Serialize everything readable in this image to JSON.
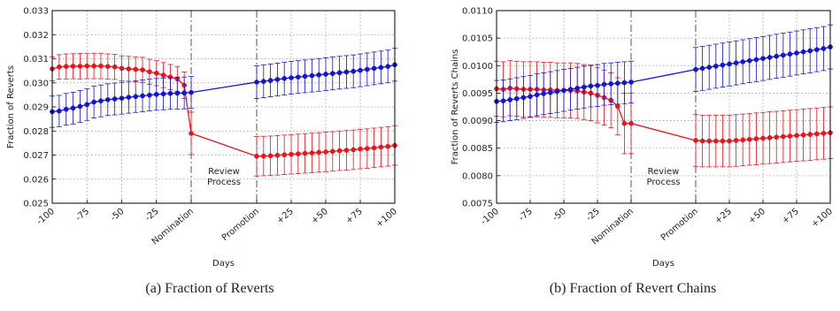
{
  "captions": [
    "(a)  Fraction of Reverts",
    "(b)  Fraction of Revert Chains"
  ],
  "chart_data": [
    {
      "type": "line",
      "ylabel": "Fraction of Reverts",
      "xlabel": "Days",
      "xtick_labels": [
        "-100",
        "-75",
        "-50",
        "-25",
        "Nomination",
        "Promotion",
        "+25",
        "+50",
        "+75",
        "+100"
      ],
      "yticks": [
        "0.025",
        "0.026",
        "0.027",
        "0.028",
        "0.029",
        "0.030",
        "0.031",
        "0.032",
        "0.033"
      ],
      "ylim": [
        0.025,
        0.033
      ],
      "annotation": [
        "Review",
        "Process"
      ],
      "grid": true,
      "segments": {
        "pre_days": [
          -100,
          -95,
          -90,
          -85,
          -80,
          -75,
          -70,
          -65,
          -60,
          -55,
          -50,
          -45,
          -40,
          -35,
          -30,
          -25,
          -20,
          -15,
          -10,
          -5,
          0
        ],
        "post_days": [
          0,
          5,
          10,
          15,
          20,
          25,
          30,
          35,
          40,
          45,
          50,
          55,
          60,
          65,
          70,
          75,
          80,
          85,
          90,
          95,
          100
        ]
      },
      "series": [
        {
          "color": "#e8141e",
          "pre": [
            0.03058,
            0.03066,
            0.03068,
            0.03069,
            0.03069,
            0.0307,
            0.0307,
            0.0307,
            0.03068,
            0.03066,
            0.0306,
            0.03058,
            0.03056,
            0.03054,
            0.03046,
            0.0304,
            0.03032,
            0.03024,
            0.03016,
            0.0299,
            0.0279
          ],
          "pre_err": [
            0.0005,
            0.00051,
            0.00052,
            0.00052,
            0.00053,
            0.00053,
            0.00053,
            0.00053,
            0.00052,
            0.00052,
            0.00052,
            0.00052,
            0.00052,
            0.00052,
            0.00052,
            0.00052,
            0.00052,
            0.00052,
            0.00052,
            0.00055,
            0.00088
          ],
          "post": [
            0.02695,
            0.02696,
            0.02697,
            0.02699,
            0.02701,
            0.02703,
            0.02705,
            0.02707,
            0.02709,
            0.02711,
            0.02713,
            0.02715,
            0.02718,
            0.0272,
            0.02722,
            0.02725,
            0.02727,
            0.0273,
            0.02733,
            0.02736,
            0.0274
          ],
          "post_err": [
            0.00082,
            0.00082,
            0.00082,
            0.00082,
            0.00082,
            0.00082,
            0.00082,
            0.00082,
            0.00082,
            0.00082,
            0.00082,
            0.00082,
            0.00082,
            0.00082,
            0.00082,
            0.00082,
            0.00082,
            0.00082,
            0.00082,
            0.00082,
            0.00082
          ]
        },
        {
          "color": "#1414d2",
          "pre": [
            0.0288,
            0.02883,
            0.0289,
            0.02895,
            0.02902,
            0.0291,
            0.0292,
            0.02925,
            0.0293,
            0.02933,
            0.02936,
            0.0294,
            0.02943,
            0.02946,
            0.02949,
            0.02952,
            0.02954,
            0.02956,
            0.02957,
            0.02958,
            0.0296
          ],
          "pre_err": [
            0.00065,
            0.00065,
            0.00066,
            0.00066,
            0.00066,
            0.00066,
            0.00066,
            0.00066,
            0.00066,
            0.00066,
            0.00066,
            0.00066,
            0.00066,
            0.00066,
            0.00066,
            0.00066,
            0.00066,
            0.00066,
            0.00066,
            0.00066,
            0.00066
          ],
          "post": [
            0.03003,
            0.03006,
            0.0301,
            0.03014,
            0.03018,
            0.03021,
            0.03024,
            0.03027,
            0.0303,
            0.03033,
            0.03036,
            0.03039,
            0.03042,
            0.03045,
            0.03048,
            0.03052,
            0.03056,
            0.0306,
            0.03064,
            0.03068,
            0.03075
          ],
          "post_err": [
            0.00068,
            0.00068,
            0.00068,
            0.00068,
            0.00068,
            0.00068,
            0.00068,
            0.00068,
            0.00068,
            0.00068,
            0.00068,
            0.00068,
            0.00068,
            0.00068,
            0.00068,
            0.00068,
            0.00068,
            0.00068,
            0.00068,
            0.00068,
            0.00068
          ]
        }
      ]
    },
    {
      "type": "line",
      "ylabel": "Fraction of Reverts Chains",
      "xlabel": "Days",
      "xtick_labels": [
        "-100",
        "-75",
        "-50",
        "-25",
        "Nomination",
        "Promotion",
        "+25",
        "+50",
        "+75",
        "+100"
      ],
      "yticks": [
        "0.0075",
        "0.0080",
        "0.0085",
        "0.0090",
        "0.0095",
        "0.0100",
        "0.0105",
        "0.0110"
      ],
      "ylim": [
        0.0075,
        0.011
      ],
      "annotation": [
        "Review",
        "Process"
      ],
      "grid": true,
      "segments": {
        "pre_days": [
          -100,
          -95,
          -90,
          -85,
          -80,
          -75,
          -70,
          -65,
          -60,
          -55,
          -50,
          -45,
          -40,
          -35,
          -30,
          -25,
          -20,
          -15,
          -10,
          -5,
          0
        ],
        "post_days": [
          0,
          5,
          10,
          15,
          20,
          25,
          30,
          35,
          40,
          45,
          50,
          55,
          60,
          65,
          70,
          75,
          80,
          85,
          90,
          95,
          100
        ]
      },
      "series": [
        {
          "color": "#e8141e",
          "pre": [
            0.00958,
            0.00957,
            0.00959,
            0.00958,
            0.00957,
            0.00957,
            0.00957,
            0.00956,
            0.00956,
            0.00955,
            0.00955,
            0.00955,
            0.00954,
            0.00952,
            0.0095,
            0.00946,
            0.00942,
            0.00937,
            0.00926,
            0.00895,
            0.00895
          ],
          "pre_err": [
            0.0005,
            0.0005,
            0.0005,
            0.0005,
            0.0005,
            0.0005,
            0.0005,
            0.0005,
            0.0005,
            0.0005,
            0.0005,
            0.0005,
            0.0005,
            0.0005,
            0.0005,
            0.0005,
            0.0005,
            0.0005,
            0.00052,
            0.00055,
            0.00055
          ],
          "post": [
            0.00864,
            0.00863,
            0.00863,
            0.00863,
            0.00863,
            0.00863,
            0.00864,
            0.00865,
            0.00866,
            0.00867,
            0.00868,
            0.00869,
            0.0087,
            0.00871,
            0.00872,
            0.00873,
            0.00874,
            0.00875,
            0.00876,
            0.00877,
            0.00878
          ],
          "post_err": [
            0.00047,
            0.00047,
            0.00047,
            0.00047,
            0.00047,
            0.00047,
            0.00047,
            0.00047,
            0.00047,
            0.00047,
            0.00047,
            0.00047,
            0.00047,
            0.00047,
            0.00047,
            0.00047,
            0.00047,
            0.00047,
            0.00047,
            0.00047,
            0.00047
          ]
        },
        {
          "color": "#1414d2",
          "pre": [
            0.00935,
            0.00936,
            0.00938,
            0.0094,
            0.00942,
            0.00944,
            0.00947,
            0.00949,
            0.00951,
            0.00953,
            0.00955,
            0.00957,
            0.00959,
            0.00961,
            0.00963,
            0.00964,
            0.00966,
            0.00967,
            0.00968,
            0.00969,
            0.0097
          ],
          "pre_err": [
            0.00038,
            0.00038,
            0.00038,
            0.00038,
            0.00038,
            0.00038,
            0.00038,
            0.00038,
            0.00038,
            0.00038,
            0.00038,
            0.00038,
            0.00038,
            0.00038,
            0.00038,
            0.00038,
            0.00038,
            0.00038,
            0.00038,
            0.00038,
            0.00038
          ],
          "post": [
            0.00993,
            0.00995,
            0.00997,
            0.00999,
            0.01001,
            0.01003,
            0.01005,
            0.01007,
            0.01009,
            0.01011,
            0.01013,
            0.01015,
            0.01017,
            0.01019,
            0.01021,
            0.01023,
            0.01025,
            0.01027,
            0.01029,
            0.01031,
            0.01034
          ],
          "post_err": [
            0.0004,
            0.0004,
            0.0004,
            0.0004,
            0.0004,
            0.0004,
            0.0004,
            0.0004,
            0.0004,
            0.0004,
            0.0004,
            0.0004,
            0.0004,
            0.0004,
            0.0004,
            0.0004,
            0.0004,
            0.0004,
            0.0004,
            0.0004,
            0.0004
          ]
        }
      ]
    }
  ]
}
